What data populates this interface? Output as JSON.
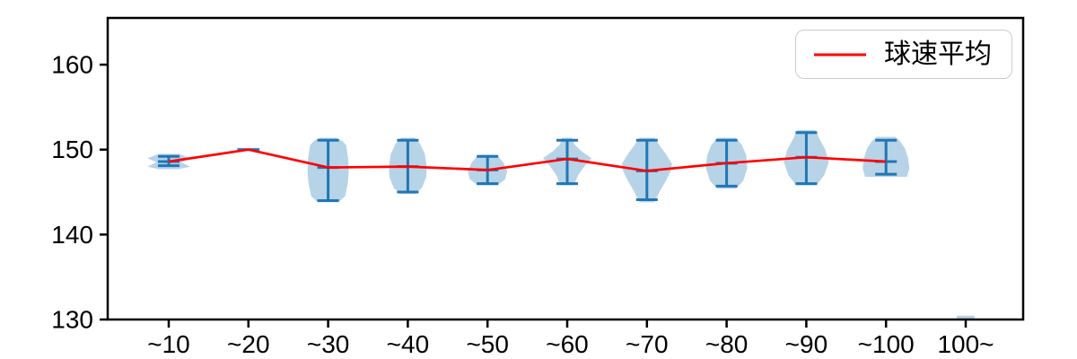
{
  "figure": {
    "background": "#ffffff"
  },
  "chart_data": {
    "type": "violin",
    "title": "",
    "xlabel": "",
    "ylabel": "",
    "categories": [
      "~10",
      "~20",
      "~30",
      "~40",
      "~50",
      "~60",
      "~70",
      "~80",
      "~90",
      "~100",
      "100~"
    ],
    "yticks": [
      130,
      140,
      150,
      160
    ],
    "ylim": [
      130,
      165.5
    ],
    "grid": false,
    "legend": {
      "label": "球速平均",
      "position": "upper right"
    },
    "series": [
      {
        "name": "球速平均",
        "type": "line",
        "color": "#ff0000",
        "values": [
          148.6,
          150.0,
          147.9,
          148.0,
          147.6,
          148.9,
          147.5,
          148.4,
          149.1,
          148.6,
          null
        ]
      }
    ],
    "violins": [
      {
        "category": "~10",
        "min": 148.1,
        "max": 149.2,
        "mean": 148.6,
        "hw": 25,
        "body": [
          [
            147.7,
            0.45
          ],
          [
            148.0,
            0.95
          ],
          [
            148.5,
            0.55
          ],
          [
            149.0,
            0.95
          ],
          [
            149.5,
            0.45
          ]
        ]
      },
      {
        "category": "~20",
        "min": 150.0,
        "max": 150.0,
        "mean": 150.0,
        "hw": 13,
        "body": [
          [
            149.9,
            1.0
          ],
          [
            150.2,
            1.0
          ]
        ]
      },
      {
        "category": "~30",
        "min": 144.0,
        "max": 151.1,
        "mean": 147.9,
        "hw": 23,
        "body": [
          [
            143.8,
            0.5
          ],
          [
            144.5,
            0.82
          ],
          [
            146.0,
            0.95
          ],
          [
            147.5,
            1.0
          ],
          [
            149.0,
            0.97
          ],
          [
            150.5,
            0.88
          ],
          [
            151.0,
            0.7
          ],
          [
            151.4,
            0.4
          ]
        ]
      },
      {
        "category": "~40",
        "min": 145.0,
        "max": 151.1,
        "mean": 148.0,
        "hw": 21,
        "body": [
          [
            144.8,
            0.4
          ],
          [
            145.5,
            0.75
          ],
          [
            146.8,
            0.98
          ],
          [
            148.0,
            1.0
          ],
          [
            149.5,
            0.9
          ],
          [
            150.7,
            0.65
          ],
          [
            151.4,
            0.35
          ]
        ]
      },
      {
        "category": "~50",
        "min": 146.0,
        "max": 149.2,
        "mean": 147.6,
        "hw": 22,
        "body": [
          [
            145.8,
            0.5
          ],
          [
            146.5,
            0.9
          ],
          [
            147.5,
            1.0
          ],
          [
            148.5,
            0.8
          ],
          [
            149.4,
            0.45
          ]
        ]
      },
      {
        "category": "~60",
        "min": 146.0,
        "max": 151.1,
        "mean": 148.9,
        "hw": 27,
        "body": [
          [
            145.8,
            0.28
          ],
          [
            147.0,
            0.45
          ],
          [
            148.2,
            0.75
          ],
          [
            149.0,
            1.0
          ],
          [
            149.8,
            0.6
          ],
          [
            150.6,
            0.3
          ],
          [
            151.4,
            0.22
          ]
        ]
      },
      {
        "category": "~70",
        "min": 144.1,
        "max": 151.1,
        "mean": 147.5,
        "hw": 28,
        "body": [
          [
            143.8,
            0.3
          ],
          [
            145.0,
            0.5
          ],
          [
            146.3,
            0.75
          ],
          [
            147.5,
            0.95
          ],
          [
            148.3,
            1.0
          ],
          [
            149.5,
            0.75
          ],
          [
            150.5,
            0.5
          ],
          [
            151.4,
            0.3
          ]
        ]
      },
      {
        "category": "~80",
        "min": 145.7,
        "max": 151.1,
        "mean": 148.4,
        "hw": 23,
        "body": [
          [
            145.4,
            0.45
          ],
          [
            146.3,
            0.8
          ],
          [
            147.8,
            1.0
          ],
          [
            149.3,
            0.95
          ],
          [
            150.5,
            0.75
          ],
          [
            151.4,
            0.45
          ]
        ]
      },
      {
        "category": "~90",
        "min": 146.0,
        "max": 152.0,
        "mean": 149.1,
        "hw": 25,
        "body": [
          [
            145.8,
            0.45
          ],
          [
            147.0,
            0.8
          ],
          [
            148.5,
            1.0
          ],
          [
            150.0,
            0.85
          ],
          [
            151.2,
            0.6
          ],
          [
            152.3,
            0.4
          ]
        ]
      },
      {
        "category": "~100",
        "min": 147.1,
        "max": 151.1,
        "mean": 148.6,
        "hw": 26,
        "body": [
          [
            146.8,
            0.9
          ],
          [
            147.8,
            1.0
          ],
          [
            149.0,
            0.95
          ],
          [
            150.2,
            0.8
          ],
          [
            151.0,
            0.6
          ],
          [
            151.5,
            0.4
          ]
        ]
      },
      {
        "category": "100~",
        "min": null,
        "max": null,
        "mean": null,
        "hw": 11,
        "body": [
          [
            130.0,
            0.9
          ],
          [
            130.45,
            0.9
          ]
        ]
      }
    ],
    "colors": {
      "violin_edge": "#1f77b4",
      "violin_fill": "#1f77b4",
      "violin_fill_alpha": 0.32,
      "mean_line": "#ff0000",
      "axis": "#000000"
    }
  }
}
